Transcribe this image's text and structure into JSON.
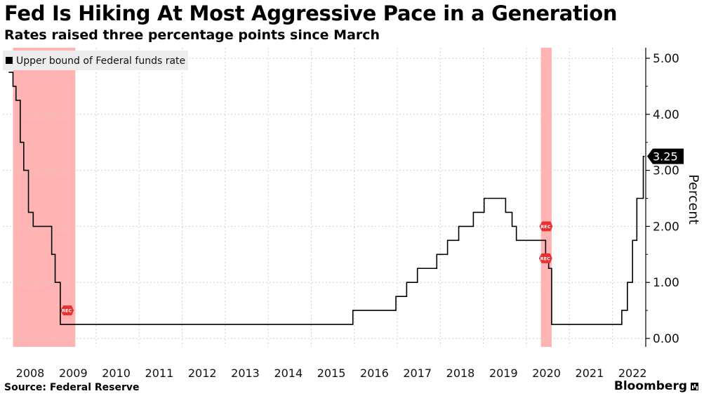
{
  "header": {
    "title": "Fed Is Hiking At Most Aggressive Pace in a Generation",
    "subtitle": "Rates raised three percentage points since March"
  },
  "footer": {
    "source": "Source: Federal Reserve",
    "brand": "Bloomberg"
  },
  "colors": {
    "line": "#000000",
    "recession_band": "#ff9a9a",
    "rec_marker": "#e83030",
    "grid": "#cfcfcf"
  },
  "chart_data": {
    "type": "line",
    "title": "Fed Is Hiking At Most Aggressive Pace in a Generation",
    "subtitle": "Rates raised three percentage points since March",
    "xlabel": "",
    "ylabel": "Percent",
    "ylim": [
      -0.15,
      5.2
    ],
    "xlim": [
      2007.5,
      2022.9
    ],
    "y_ticks": [
      0.0,
      1.0,
      2.0,
      3.0,
      4.0,
      5.0
    ],
    "y_tick_labels": [
      "0.00",
      "1.00",
      "2.00",
      "3.00",
      "4.00",
      "5.00"
    ],
    "x_tick_labels": [
      "2008",
      "2009",
      "2010",
      "2011",
      "2012",
      "2013",
      "2014",
      "2015",
      "2016",
      "2017",
      "2018",
      "2019",
      "2020",
      "2021",
      "2022"
    ],
    "x_tick_positions": [
      2008.0,
      2009.0,
      2010.0,
      2011.0,
      2012.0,
      2013.0,
      2014.0,
      2015.0,
      2016.0,
      2017.0,
      2018.0,
      2019.0,
      2020.0,
      2021.0,
      2022.0
    ],
    "legend": [
      "Upper bound of Federal funds rate"
    ],
    "legend_position": "top-left",
    "last_value_label": "3.25",
    "recessions": [
      {
        "start": 2007.6,
        "end": 2009.05
      },
      {
        "start": 2019.87,
        "end": 2020.12
      }
    ],
    "rec_markers": [
      {
        "x": 2008.85,
        "y": 0.5,
        "label": "REC"
      },
      {
        "x": 2019.98,
        "y": 2.0,
        "label": "REC"
      },
      {
        "x": 2019.97,
        "y": 1.43,
        "label": "REC"
      }
    ],
    "series": [
      {
        "name": "Upper bound of Federal funds rate",
        "points": [
          [
            2007.5,
            4.75
          ],
          [
            2007.6,
            4.5
          ],
          [
            2007.67,
            4.25
          ],
          [
            2007.77,
            3.5
          ],
          [
            2007.85,
            3.0
          ],
          [
            2007.96,
            2.25
          ],
          [
            2008.07,
            2.0
          ],
          [
            2008.5,
            1.5
          ],
          [
            2008.58,
            1.0
          ],
          [
            2008.7,
            0.25
          ],
          [
            2015.5,
            0.5
          ],
          [
            2016.5,
            0.75
          ],
          [
            2016.75,
            1.0
          ],
          [
            2017.0,
            1.25
          ],
          [
            2017.45,
            1.5
          ],
          [
            2017.7,
            1.75
          ],
          [
            2017.96,
            2.0
          ],
          [
            2018.3,
            2.25
          ],
          [
            2018.55,
            2.5
          ],
          [
            2019.05,
            2.25
          ],
          [
            2019.2,
            2.0
          ],
          [
            2019.3,
            1.75
          ],
          [
            2019.98,
            1.5
          ],
          [
            2020.05,
            1.25
          ],
          [
            2020.12,
            0.25
          ],
          [
            2021.75,
            0.5
          ],
          [
            2021.88,
            1.0
          ],
          [
            2022.0,
            1.75
          ],
          [
            2022.1,
            2.5
          ],
          [
            2022.25,
            3.25
          ],
          [
            2022.28,
            3.25
          ]
        ]
      }
    ]
  }
}
